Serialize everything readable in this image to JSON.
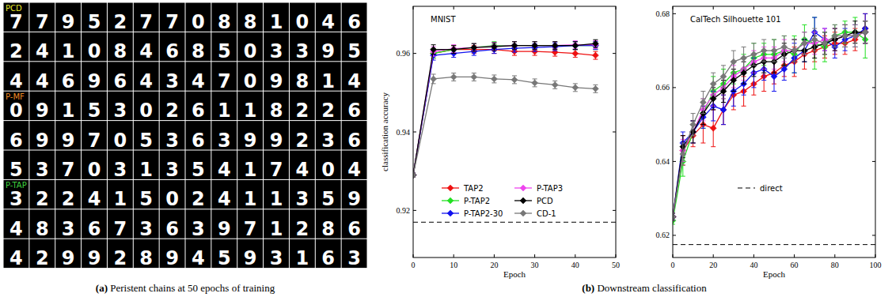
{
  "panel_a": {
    "caption": "(a) Peristent chains at 50 epochs of training",
    "grids": [
      {
        "label": "PCD",
        "color": "#e8e82a",
        "digits": [
          [
            7,
            7,
            9,
            5,
            2,
            7,
            7,
            0,
            8,
            8,
            1,
            0,
            4,
            6
          ],
          [
            2,
            4,
            1,
            0,
            8,
            4,
            6,
            8,
            5,
            0,
            3,
            3,
            9,
            5
          ],
          [
            4,
            4,
            6,
            9,
            6,
            4,
            3,
            4,
            7,
            0,
            9,
            8,
            1,
            4
          ]
        ]
      },
      {
        "label": "P-MF",
        "color": "#f08a24",
        "digits": [
          [
            0,
            9,
            1,
            5,
            3,
            0,
            2,
            6,
            1,
            1,
            8,
            2,
            2,
            6
          ],
          [
            6,
            9,
            9,
            7,
            0,
            5,
            3,
            6,
            3,
            9,
            9,
            2,
            3,
            6
          ],
          [
            5,
            3,
            7,
            0,
            3,
            1,
            3,
            5,
            4,
            1,
            7,
            4,
            0,
            4
          ]
        ]
      },
      {
        "label": "P-TAP",
        "color": "#3fd13f",
        "digits": [
          [
            3,
            2,
            2,
            4,
            1,
            5,
            0,
            2,
            4,
            1,
            1,
            3,
            5,
            9
          ],
          [
            4,
            8,
            3,
            6,
            7,
            3,
            6,
            3,
            9,
            7,
            1,
            2,
            8,
            6
          ],
          [
            4,
            2,
            9,
            9,
            2,
            8,
            9,
            4,
            5,
            9,
            3,
            1,
            6,
            3
          ]
        ]
      }
    ]
  },
  "panel_b": {
    "caption": "(b) Downstream classification"
  },
  "chart_data": [
    {
      "type": "line",
      "title": "MNIST",
      "x_label": "Epoch",
      "y_label": "classification accuracy",
      "x": [
        0,
        5,
        10,
        15,
        20,
        25,
        30,
        35,
        40,
        45
      ],
      "xlim": [
        0,
        50
      ],
      "xticks": [
        0,
        10,
        20,
        30,
        40,
        50
      ],
      "ylim": [
        0.908,
        0.972
      ],
      "yticks": [
        0.92,
        0.94,
        0.96
      ],
      "legend": "lower center",
      "marker": "diamond",
      "series": [
        {
          "name": "TAP2",
          "color": "#ee1111",
          "values": [
            0.929,
            0.96,
            0.961,
            0.961,
            0.961,
            0.9605,
            0.9605,
            0.9603,
            0.96,
            0.9595
          ],
          "errors": [
            0.0005,
            0.0012,
            0.001,
            0.001,
            0.001,
            0.001,
            0.001,
            0.001,
            0.001,
            0.001
          ]
        },
        {
          "name": "P-TAP2",
          "color": "#22e022",
          "values": [
            0.929,
            0.96,
            0.961,
            0.9615,
            0.962,
            0.962,
            0.962,
            0.962,
            0.962,
            0.962
          ],
          "errors": [
            0.0005,
            0.0012,
            0.001,
            0.001,
            0.001,
            0.001,
            0.001,
            0.001,
            0.001,
            0.001
          ]
        },
        {
          "name": "P-TAP2-30",
          "color": "#1111ee",
          "values": [
            0.929,
            0.9595,
            0.96,
            0.9605,
            0.961,
            0.9613,
            0.9615,
            0.9617,
            0.962,
            0.962
          ],
          "errors": [
            0.0005,
            0.0012,
            0.001,
            0.001,
            0.001,
            0.001,
            0.001,
            0.001,
            0.001,
            0.001
          ]
        },
        {
          "name": "P-TAP3",
          "color": "#ee44ee",
          "values": [
            0.929,
            0.9605,
            0.9612,
            0.9615,
            0.9618,
            0.962,
            0.962,
            0.962,
            0.9622,
            0.9622
          ],
          "errors": [
            0.0005,
            0.0012,
            0.001,
            0.001,
            0.001,
            0.001,
            0.001,
            0.001,
            0.001,
            0.001
          ]
        },
        {
          "name": "PCD",
          "color": "#000000",
          "values": [
            0.929,
            0.961,
            0.961,
            0.9615,
            0.9617,
            0.962,
            0.962,
            0.962,
            0.962,
            0.9625
          ],
          "errors": [
            0.0005,
            0.0012,
            0.001,
            0.001,
            0.001,
            0.001,
            0.001,
            0.001,
            0.001,
            0.001
          ]
        },
        {
          "name": "CD-1",
          "color": "#777777",
          "values": [
            0.929,
            0.9535,
            0.954,
            0.954,
            0.9535,
            0.9533,
            0.9525,
            0.952,
            0.9513,
            0.951
          ],
          "errors": [
            0.0005,
            0.0012,
            0.001,
            0.001,
            0.001,
            0.001,
            0.001,
            0.001,
            0.001,
            0.001
          ]
        },
        {
          "color": "#000000",
          "line_style": "dashed",
          "marker": "none",
          "x": [
            0,
            50
          ],
          "values": [
            0.917,
            0.917
          ]
        }
      ]
    },
    {
      "type": "line",
      "title": "CalTech Silhouette 101",
      "x_label": "Epoch",
      "x": [
        0,
        5,
        10,
        15,
        20,
        25,
        30,
        35,
        40,
        45,
        50,
        55,
        60,
        65,
        70,
        75,
        80,
        85,
        90,
        95
      ],
      "xlim": [
        0,
        100
      ],
      "xticks": [
        0,
        20,
        40,
        60,
        80,
        100
      ],
      "ylim": [
        0.614,
        0.682
      ],
      "yticks": [
        0.62,
        0.64,
        0.66,
        0.68
      ],
      "legend": "lower center",
      "marker": "diamond",
      "series": [
        {
          "color": "#ee1111",
          "values": [
            0.625,
            0.643,
            0.647,
            0.65,
            0.649,
            0.654,
            0.658,
            0.659,
            0.661,
            0.663,
            0.664,
            0.666,
            0.667,
            0.669,
            0.67,
            0.671,
            0.672,
            0.672,
            0.673,
            0.676
          ],
          "errors": [
            0.001,
            0.004,
            0.003,
            0.005,
            0.005,
            0.004,
            0.004,
            0.004,
            0.003,
            0.004,
            0.003,
            0.003,
            0.004,
            0.004,
            0.003,
            0.003,
            0.003,
            0.003,
            0.003,
            0.004
          ]
        },
        {
          "color": "#22e022",
          "values": [
            0.624,
            0.64,
            0.648,
            0.653,
            0.659,
            0.661,
            0.664,
            0.665,
            0.668,
            0.669,
            0.669,
            0.67,
            0.669,
            0.673,
            0.672,
            0.671,
            0.674,
            0.675,
            0.675,
            0.673
          ],
          "errors": [
            0.001,
            0.004,
            0.003,
            0.004,
            0.004,
            0.004,
            0.003,
            0.004,
            0.004,
            0.003,
            0.004,
            0.004,
            0.005,
            0.004,
            0.007,
            0.004,
            0.003,
            0.003,
            0.004,
            0.005
          ]
        },
        {
          "color": "#1111ee",
          "values": [
            0.625,
            0.645,
            0.648,
            0.652,
            0.655,
            0.654,
            0.659,
            0.661,
            0.664,
            0.665,
            0.663,
            0.665,
            0.668,
            0.67,
            0.675,
            0.673,
            0.671,
            0.673,
            0.674,
            0.676
          ],
          "errors": [
            0.001,
            0.003,
            0.003,
            0.003,
            0.004,
            0.004,
            0.004,
            0.003,
            0.004,
            0.003,
            0.004,
            0.003,
            0.004,
            0.003,
            0.004,
            0.003,
            0.003,
            0.003,
            0.003,
            0.004
          ]
        },
        {
          "color": "#ee44ee",
          "values": [
            0.625,
            0.643,
            0.648,
            0.654,
            0.658,
            0.66,
            0.663,
            0.665,
            0.667,
            0.668,
            0.668,
            0.67,
            0.67,
            0.672,
            0.672,
            0.673,
            0.673,
            0.674,
            0.674,
            0.675
          ],
          "errors": [
            0.001,
            0.003,
            0.003,
            0.003,
            0.003,
            0.003,
            0.003,
            0.003,
            0.003,
            0.003,
            0.003,
            0.003,
            0.003,
            0.003,
            0.003,
            0.003,
            0.003,
            0.003,
            0.003,
            0.003
          ]
        },
        {
          "color": "#000000",
          "values": [
            0.625,
            0.644,
            0.648,
            0.653,
            0.657,
            0.659,
            0.662,
            0.664,
            0.666,
            0.667,
            0.667,
            0.669,
            0.67,
            0.67,
            0.671,
            0.672,
            0.673,
            0.674,
            0.675,
            0.675
          ],
          "errors": [
            0.001,
            0.003,
            0.003,
            0.003,
            0.003,
            0.003,
            0.003,
            0.003,
            0.003,
            0.003,
            0.003,
            0.003,
            0.003,
            0.003,
            0.003,
            0.003,
            0.003,
            0.003,
            0.003,
            0.003
          ]
        },
        {
          "color": "#777777",
          "values": [
            0.625,
            0.642,
            0.65,
            0.656,
            0.661,
            0.663,
            0.667,
            0.668,
            0.669,
            0.67,
            0.67,
            0.671,
            0.67,
            0.672,
            0.673,
            0.672,
            0.674,
            0.674,
            0.674,
            0.675
          ],
          "errors": [
            0.001,
            0.003,
            0.003,
            0.003,
            0.003,
            0.003,
            0.003,
            0.003,
            0.003,
            0.003,
            0.003,
            0.003,
            0.003,
            0.003,
            0.003,
            0.003,
            0.003,
            0.003,
            0.003,
            0.003
          ]
        },
        {
          "name": "direct",
          "color": "#000000",
          "line_style": "dashed",
          "marker": "none",
          "x": [
            0,
            100
          ],
          "values": [
            0.6175,
            0.6175
          ]
        }
      ]
    }
  ]
}
